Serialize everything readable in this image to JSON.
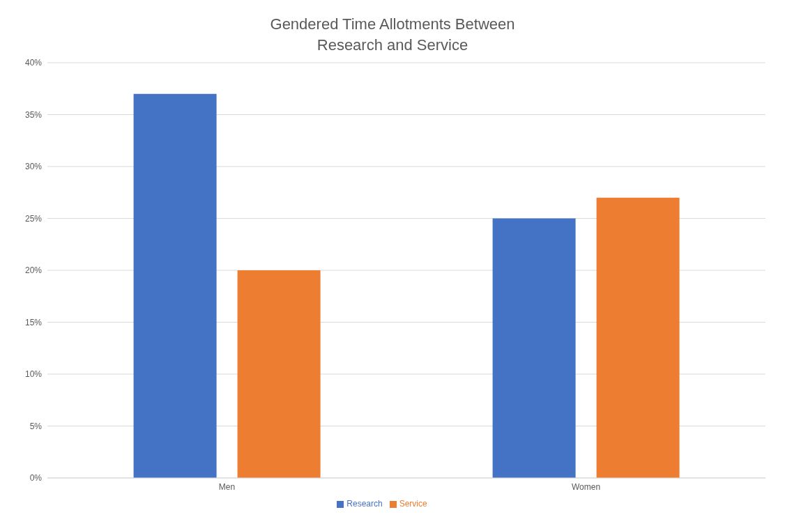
{
  "chart_data": {
    "type": "bar",
    "title": "Gendered Time Allotments Between\nResearch and Service",
    "categories": [
      "Men",
      "Women"
    ],
    "series": [
      {
        "name": "Research",
        "color": "#4472c4",
        "values": [
          37,
          25
        ]
      },
      {
        "name": "Service",
        "color": "#ed7d31",
        "values": [
          20,
          27
        ]
      }
    ],
    "ylim": [
      0,
      40
    ],
    "yticks": [
      {
        "value": 0,
        "label": "0%"
      },
      {
        "value": 5,
        "label": "5%"
      },
      {
        "value": 10,
        "label": "10%"
      },
      {
        "value": 15,
        "label": "15%"
      },
      {
        "value": 20,
        "label": "20%"
      },
      {
        "value": 25,
        "label": "25%"
      },
      {
        "value": 30,
        "label": "30%"
      },
      {
        "value": 35,
        "label": "35%"
      },
      {
        "value": 40,
        "label": "40%"
      }
    ],
    "grid": "y",
    "legend": "bottom"
  }
}
